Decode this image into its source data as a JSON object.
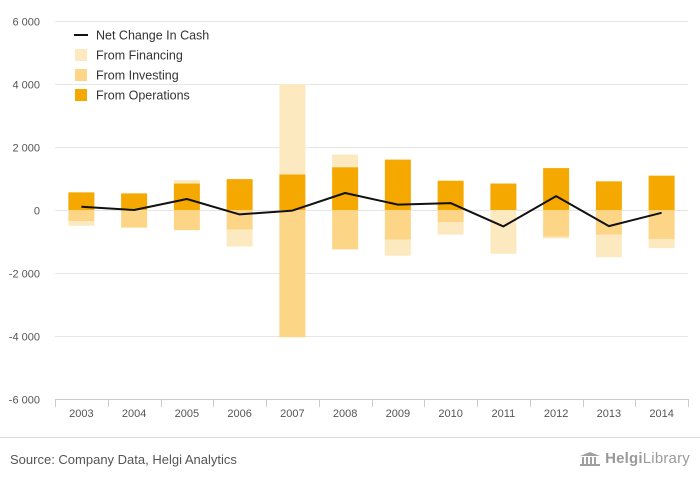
{
  "chart_data": {
    "type": "bar",
    "stacked": true,
    "categories": [
      "2003",
      "2004",
      "2005",
      "2006",
      "2007",
      "2008",
      "2009",
      "2010",
      "2011",
      "2012",
      "2013",
      "2014"
    ],
    "series": [
      {
        "name": "From Operations",
        "kind": "bar",
        "color": "#f5a800",
        "values": [
          560,
          530,
          840,
          980,
          1130,
          1360,
          1600,
          930,
          840,
          1330,
          910,
          1090
        ]
      },
      {
        "name": "From Investing",
        "kind": "bar",
        "color": "#fdd587",
        "values": [
          -350,
          -560,
          -640,
          -620,
          -4040,
          -1250,
          -940,
          -390,
          0,
          -850,
          -780,
          -920
        ]
      },
      {
        "name": "From Financing",
        "kind": "bar",
        "color": "#fde9bf",
        "values": [
          -150,
          10,
          110,
          -540,
          2870,
          400,
          -510,
          -390,
          -1390,
          -50,
          -720,
          -290
        ]
      },
      {
        "name": "Net Change In Cash",
        "kind": "line",
        "color": "#111111",
        "values": [
          100,
          0,
          350,
          -140,
          -20,
          540,
          170,
          220,
          -520,
          440,
          -510,
          -90
        ]
      }
    ],
    "yaxis": {
      "min": -6000,
      "max": 6000,
      "ticks": [
        6000,
        4000,
        2000,
        0,
        -2000,
        -4000,
        -6000
      ],
      "tick_labels": [
        "6 000",
        "4 000",
        "2 000",
        "0",
        "-2 000",
        "-4 000",
        "-6 000"
      ]
    },
    "legend": {
      "position": "top-left",
      "entries": [
        "Net Change In Cash",
        "From Financing",
        "From Investing",
        "From Operations"
      ]
    },
    "grid": true
  },
  "footer": {
    "source": "Source: Company Data, Helgi Analytics",
    "brand_a": "Helgi",
    "brand_b": "Library"
  }
}
